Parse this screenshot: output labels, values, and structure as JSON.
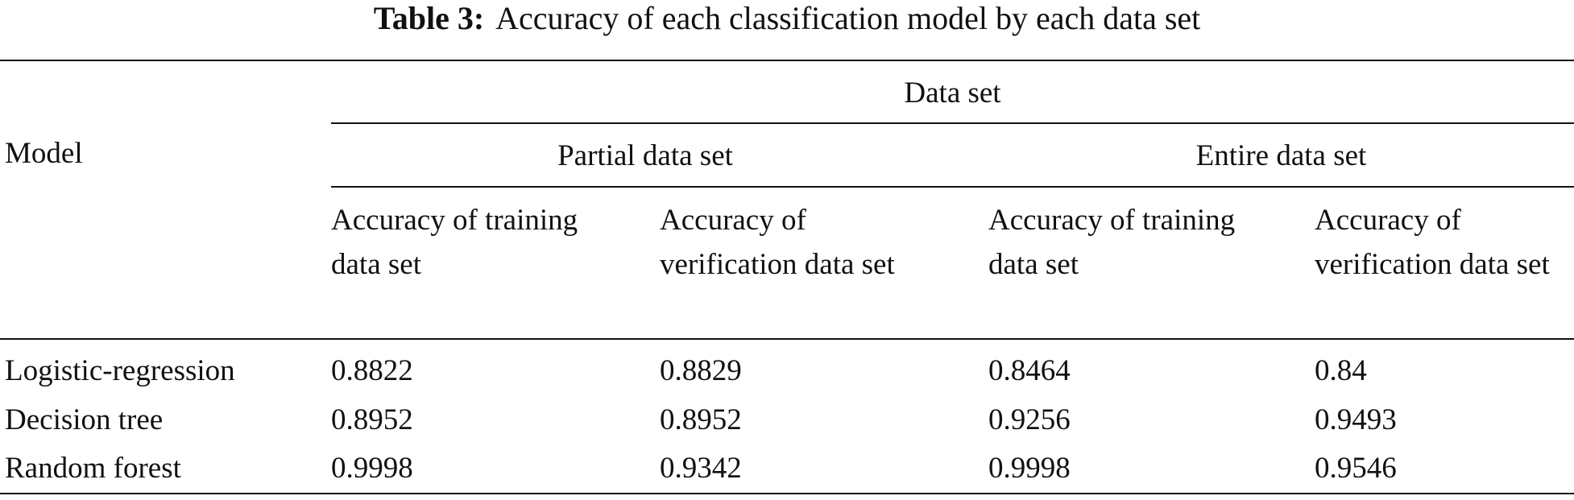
{
  "table": {
    "title": {
      "label": "Table 3:",
      "text": "Accuracy of each classification model by each data set"
    },
    "header": {
      "model": "Model",
      "data_set": "Data set",
      "groups": [
        "Partial data set",
        "Entire data set"
      ],
      "columns": [
        "Accuracy of training data set",
        "Accuracy of verification data set",
        "Accuracy of training data set",
        "Accuracy of verification data set"
      ]
    },
    "rows": [
      [
        "Logistic-regression",
        0.8822,
        0.8829,
        0.8464,
        0.84
      ],
      [
        "Decision tree",
        0.8952,
        0.8952,
        0.9256,
        0.9493
      ],
      [
        "Random forest",
        0.9998,
        0.9342,
        0.9998,
        0.9546
      ]
    ]
  }
}
